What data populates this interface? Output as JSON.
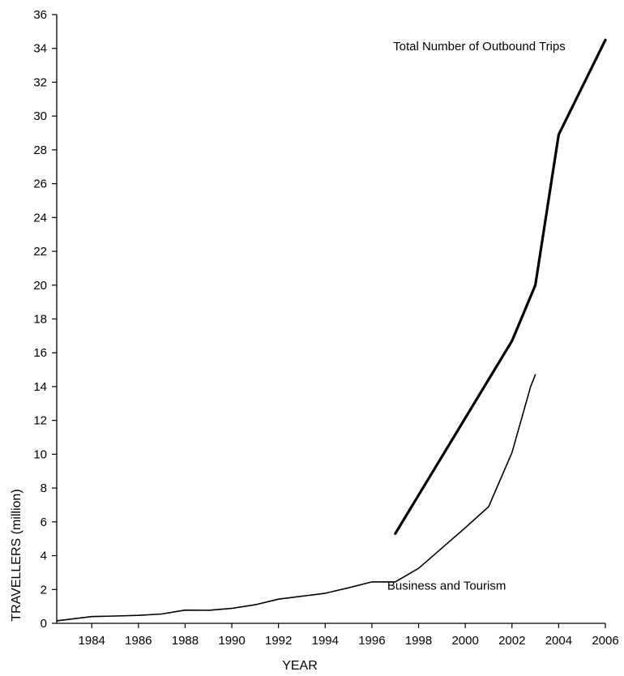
{
  "chart_data": {
    "type": "line",
    "title": "",
    "xlabel": "YEAR",
    "ylabel": "TRAVELLERS (million)",
    "xlim": [
      1982.5,
      2006
    ],
    "ylim": [
      0,
      36
    ],
    "x_ticks": [
      1984,
      1986,
      1988,
      1990,
      1992,
      1994,
      1996,
      1998,
      2000,
      2002,
      2004,
      2006
    ],
    "y_ticks": [
      0,
      2,
      4,
      6,
      8,
      10,
      12,
      14,
      16,
      18,
      20,
      22,
      24,
      26,
      28,
      30,
      32,
      34,
      36
    ],
    "grid": false,
    "series": [
      {
        "name": "Total Number of Outbound Trips",
        "x": [
          1997,
          2002,
          2003,
          2004,
          2006
        ],
        "y": [
          5.3,
          16.7,
          20.0,
          28.9,
          34.5
        ]
      },
      {
        "name": "Business and Tourism",
        "x": [
          1982.5,
          1984,
          1985,
          1986,
          1987,
          1988,
          1989,
          1990,
          1991,
          1992,
          1993,
          1994,
          1995,
          1996,
          1997,
          1998,
          1999,
          2000,
          2001,
          2002,
          2002.8,
          2003
        ],
        "y": [
          0.15,
          0.4,
          0.43,
          0.47,
          0.55,
          0.78,
          0.77,
          0.88,
          1.1,
          1.43,
          1.6,
          1.78,
          2.1,
          2.45,
          2.45,
          3.25,
          4.45,
          5.65,
          6.9,
          10.1,
          14.0,
          14.7
        ]
      }
    ],
    "annotations": [
      {
        "text": "Total Number of Outbound Trips",
        "x": 2000.6,
        "y": 33.9
      },
      {
        "text": "Business and Tourism",
        "x": 1999.2,
        "y": 2.0
      }
    ]
  }
}
